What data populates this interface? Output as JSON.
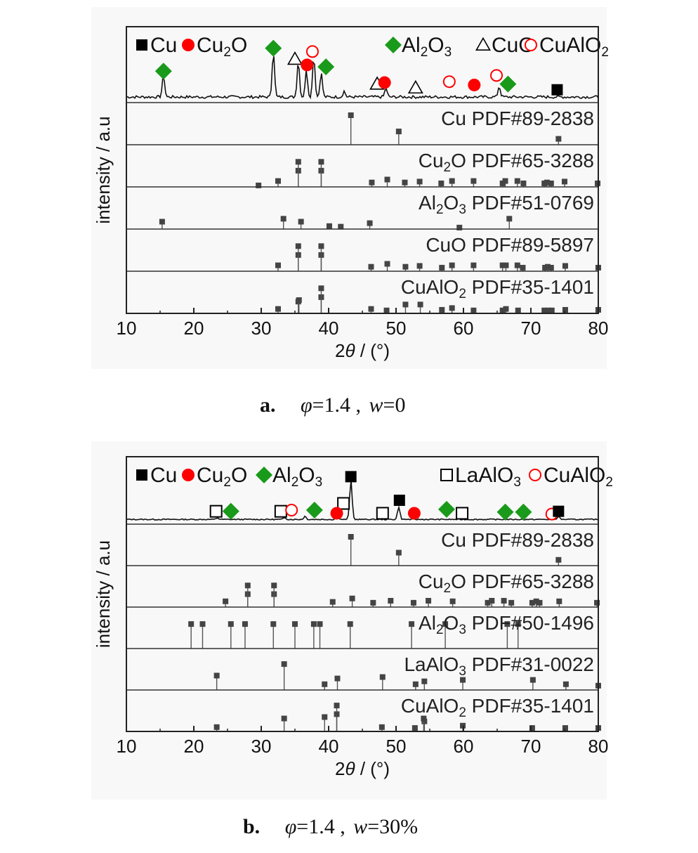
{
  "chart_data": [
    {
      "type": "line",
      "panel": "a",
      "caption": {
        "letter": "a.",
        "phi_symbol": "φ",
        "phi_value": "=1.4 ,",
        "w_symbol": "w",
        "w_value": "=0"
      },
      "xlabel_parts": [
        "2",
        "θ",
        " / (°)"
      ],
      "ylabel": "intensity / a.u",
      "xlim": [
        10,
        80
      ],
      "xticks": [
        "10",
        "20",
        "30",
        "40",
        "50",
        "60",
        "70",
        "80"
      ],
      "legend": [
        {
          "marker": "filled-square",
          "color": "#000000",
          "label": "Cu"
        },
        {
          "marker": "filled-circle",
          "color": "#ff0000",
          "label": "Cu",
          "sub": "2",
          "tail": "O"
        },
        {
          "marker": "filled-diamond",
          "color": "#1a9a1a",
          "label": "Al",
          "sub": "2",
          "tail": "O",
          "sub2": "3"
        },
        {
          "marker": "open-triangle",
          "color": "#000000",
          "label": "CuO"
        },
        {
          "marker": "open-circle",
          "color": "#ff0000",
          "label": "CuAlO",
          "sub": "2"
        }
      ],
      "pattern_peaks": [
        {
          "x": 15.5,
          "h": 0.45
        },
        {
          "x": 31.8,
          "h": 0.95
        },
        {
          "x": 35.5,
          "h": 0.75
        },
        {
          "x": 36.7,
          "h": 0.55
        },
        {
          "x": 37.8,
          "h": 0.85
        },
        {
          "x": 38.9,
          "h": 0.5
        },
        {
          "x": 42.3,
          "h": 0.12
        },
        {
          "x": 48.5,
          "h": 0.18
        },
        {
          "x": 65.3,
          "h": 0.22
        }
      ],
      "pattern_markers": [
        {
          "x": 15.5,
          "y": 0.57,
          "m": "filled-diamond"
        },
        {
          "x": 31.8,
          "y": 1.05,
          "m": "filled-diamond"
        },
        {
          "x": 35.0,
          "y": 0.82,
          "m": "open-triangle"
        },
        {
          "x": 37.6,
          "y": 0.98,
          "m": "open-circle"
        },
        {
          "x": 36.8,
          "y": 0.7,
          "m": "filled-circle"
        },
        {
          "x": 39.6,
          "y": 0.66,
          "m": "filled-diamond"
        },
        {
          "x": 47.2,
          "y": 0.3,
          "m": "open-triangle"
        },
        {
          "x": 48.3,
          "y": 0.33,
          "m": "filled-circle"
        },
        {
          "x": 52.9,
          "y": 0.22,
          "m": "open-triangle"
        },
        {
          "x": 57.9,
          "y": 0.35,
          "m": "open-circle"
        },
        {
          "x": 61.6,
          "y": 0.28,
          "m": "filled-circle"
        },
        {
          "x": 64.9,
          "y": 0.48,
          "m": "open-circle"
        },
        {
          "x": 66.6,
          "y": 0.3,
          "m": "filled-diamond"
        },
        {
          "x": 73.9,
          "y": 0.18,
          "m": "filled-square"
        }
      ],
      "references": [
        {
          "name": "Cu",
          "sub": "",
          "tail": " PDF#89-2838",
          "peaks": [
            [
              43.3,
              1.0
            ],
            [
              50.4,
              0.45
            ],
            [
              74.1,
              0.2
            ]
          ]
        },
        {
          "name": "Cu",
          "sub": "2",
          "tail": "O PDF#65-3288",
          "peaks": [
            [
              29.6,
              0.05
            ],
            [
              32.5,
              0.2
            ],
            [
              35.5,
              0.55
            ],
            [
              35.5,
              0.85
            ],
            [
              38.9,
              0.55
            ],
            [
              38.9,
              0.85
            ],
            [
              46.4,
              0.15
            ],
            [
              48.7,
              0.25
            ],
            [
              51.3,
              0.15
            ],
            [
              53.5,
              0.18
            ],
            [
              56.7,
              0.12
            ],
            [
              58.3,
              0.2
            ],
            [
              61.5,
              0.2
            ],
            [
              65.8,
              0.12
            ],
            [
              66.2,
              0.2
            ],
            [
              68.0,
              0.2
            ],
            [
              68.9,
              0.12
            ],
            [
              72.0,
              0.12
            ],
            [
              72.4,
              0.15
            ],
            [
              73.0,
              0.12
            ],
            [
              75.0,
              0.18
            ],
            [
              79.9,
              0.12
            ]
          ]
        },
        {
          "name": "Al",
          "sub": "2",
          "tail": "O",
          "sub2": "3",
          "tail2": " PDF#51-0769",
          "peaks": [
            [
              15.3,
              0.25
            ],
            [
              33.3,
              0.35
            ],
            [
              35.9,
              0.25
            ],
            [
              40.1,
              0.1
            ],
            [
              41.8,
              0.08
            ],
            [
              46.1,
              0.2
            ],
            [
              59.4,
              0.05
            ],
            [
              66.8,
              0.35
            ]
          ]
        },
        {
          "name": "CuO",
          "sub": "",
          "tail": " PDF#89-5897",
          "peaks": [
            [
              32.5,
              0.2
            ],
            [
              35.5,
              0.55
            ],
            [
              35.5,
              0.85
            ],
            [
              38.9,
              0.55
            ],
            [
              38.9,
              0.85
            ],
            [
              46.3,
              0.15
            ],
            [
              48.7,
              0.25
            ],
            [
              51.4,
              0.15
            ],
            [
              53.5,
              0.18
            ],
            [
              56.8,
              0.12
            ],
            [
              58.3,
              0.2
            ],
            [
              61.5,
              0.2
            ],
            [
              65.8,
              0.2
            ],
            [
              66.3,
              0.2
            ],
            [
              68.0,
              0.2
            ],
            [
              68.8,
              0.12
            ],
            [
              72.1,
              0.12
            ],
            [
              72.5,
              0.15
            ],
            [
              73.0,
              0.12
            ],
            [
              75.1,
              0.18
            ],
            [
              80.0,
              0.12
            ]
          ]
        },
        {
          "name": "CuAlO",
          "sub": "2",
          "tail": " PDF#35-1401",
          "peaks": [
            [
              32.5,
              0.15
            ],
            [
              35.5,
              0.4
            ],
            [
              35.6,
              0.45
            ],
            [
              38.9,
              0.55
            ],
            [
              38.9,
              0.85
            ],
            [
              46.3,
              0.15
            ],
            [
              48.6,
              0.1
            ],
            [
              51.4,
              0.3
            ],
            [
              53.6,
              0.3
            ],
            [
              56.8,
              0.12
            ],
            [
              58.3,
              0.18
            ],
            [
              61.5,
              0.1
            ],
            [
              65.8,
              0.1
            ],
            [
              66.3,
              0.15
            ],
            [
              68.1,
              0.1
            ],
            [
              72.0,
              0.1
            ],
            [
              72.6,
              0.1
            ],
            [
              73.1,
              0.1
            ],
            [
              75.1,
              0.12
            ],
            [
              80.0,
              0.12
            ]
          ]
        }
      ]
    },
    {
      "type": "line",
      "panel": "b",
      "caption": {
        "letter": "b.",
        "phi_symbol": "φ",
        "phi_value": "=1.4 ,",
        "w_symbol": "w",
        "w_value": "=30%"
      },
      "xlabel_parts": [
        "2",
        "θ",
        " / (°)"
      ],
      "ylabel": "intensity / a.u",
      "xlim": [
        10,
        80
      ],
      "xticks": [
        "10",
        "20",
        "30",
        "40",
        "50",
        "60",
        "70",
        "80"
      ],
      "legend": [
        {
          "marker": "filled-square",
          "color": "#000000",
          "label": "Cu"
        },
        {
          "marker": "filled-circle",
          "color": "#ff0000",
          "label": "Cu",
          "sub": "2",
          "tail": "O"
        },
        {
          "marker": "filled-diamond",
          "color": "#1a9a1a",
          "label": "Al",
          "sub": "2",
          "tail": "O",
          "sub2": "3"
        },
        {
          "marker": "open-square",
          "color": "#000000",
          "label": "LaAlO",
          "sub": "3"
        },
        {
          "marker": "open-circle",
          "color": "#ff0000",
          "label": "CuAlO",
          "sub": "2"
        }
      ],
      "pattern_peaks": [
        {
          "x": 23.5,
          "h": 0.04
        },
        {
          "x": 33.5,
          "h": 0.05
        },
        {
          "x": 36.5,
          "h": 0.08
        },
        {
          "x": 41.3,
          "h": 0.15
        },
        {
          "x": 43.3,
          "h": 1.0
        },
        {
          "x": 50.4,
          "h": 0.32
        },
        {
          "x": 74.1,
          "h": 0.08
        }
      ],
      "pattern_markers": [
        {
          "x": 23.3,
          "y": 0.22,
          "m": "open-square"
        },
        {
          "x": 25.5,
          "y": 0.22,
          "m": "filled-diamond"
        },
        {
          "x": 32.9,
          "y": 0.22,
          "m": "open-square"
        },
        {
          "x": 34.5,
          "y": 0.25,
          "m": "open-circle"
        },
        {
          "x": 37.9,
          "y": 0.25,
          "m": "filled-diamond"
        },
        {
          "x": 42.2,
          "y": 0.42,
          "m": "open-square"
        },
        {
          "x": 41.2,
          "y": 0.17,
          "m": "filled-circle"
        },
        {
          "x": 43.3,
          "y": 1.1,
          "m": "filled-square"
        },
        {
          "x": 48.0,
          "y": 0.17,
          "m": "open-square"
        },
        {
          "x": 50.5,
          "y": 0.5,
          "m": "filled-square"
        },
        {
          "x": 52.7,
          "y": 0.17,
          "m": "filled-circle"
        },
        {
          "x": 57.5,
          "y": 0.27,
          "m": "filled-diamond"
        },
        {
          "x": 59.8,
          "y": 0.17,
          "m": "open-square"
        },
        {
          "x": 66.2,
          "y": 0.2,
          "m": "filled-diamond"
        },
        {
          "x": 68.9,
          "y": 0.2,
          "m": "filled-diamond"
        },
        {
          "x": 73.1,
          "y": 0.15,
          "m": "open-circle"
        },
        {
          "x": 74.1,
          "y": 0.22,
          "m": "filled-square"
        }
      ],
      "references": [
        {
          "name": "Cu",
          "sub": "",
          "tail": " PDF#89-2838",
          "peaks": [
            [
              43.3,
              1.0
            ],
            [
              50.4,
              0.45
            ],
            [
              74.1,
              0.2
            ]
          ]
        },
        {
          "name": "Cu",
          "sub": "2",
          "tail": "O PDF#65-3288",
          "peaks": [
            [
              24.7,
              0.2
            ],
            [
              28.0,
              0.45
            ],
            [
              28.0,
              0.75
            ],
            [
              31.9,
              0.45
            ],
            [
              31.9,
              0.75
            ],
            [
              40.6,
              0.18
            ],
            [
              43.5,
              0.3
            ],
            [
              46.6,
              0.15
            ],
            [
              49.2,
              0.22
            ],
            [
              52.6,
              0.15
            ],
            [
              54.8,
              0.22
            ],
            [
              58.4,
              0.2
            ],
            [
              63.6,
              0.15
            ],
            [
              64.2,
              0.22
            ],
            [
              66.0,
              0.22
            ],
            [
              67.1,
              0.15
            ],
            [
              70.2,
              0.15
            ],
            [
              70.8,
              0.2
            ],
            [
              71.3,
              0.15
            ],
            [
              74.2,
              0.2
            ],
            [
              79.8,
              0.15
            ]
          ]
        },
        {
          "name": "Al",
          "sub": "2",
          "tail": "O",
          "sub2": "3",
          "tail2": " PDF#50-1496",
          "peaks": [
            [
              19.6,
              0.85
            ],
            [
              21.3,
              0.85
            ],
            [
              25.5,
              0.85
            ],
            [
              27.6,
              0.85
            ],
            [
              31.8,
              0.85
            ],
            [
              35.0,
              0.85
            ],
            [
              37.8,
              0.85
            ],
            [
              38.7,
              0.85
            ],
            [
              43.2,
              0.85
            ],
            [
              52.3,
              0.85
            ],
            [
              57.3,
              0.85
            ],
            [
              66.5,
              0.85
            ],
            [
              68.1,
              0.85
            ]
          ]
        },
        {
          "name": "LaAlO",
          "sub": "3",
          "tail": " PDF#31-0022",
          "peaks": [
            [
              23.4,
              0.5
            ],
            [
              33.4,
              0.9
            ],
            [
              39.4,
              0.2
            ],
            [
              41.3,
              0.4
            ],
            [
              48.0,
              0.45
            ],
            [
              52.9,
              0.2
            ],
            [
              54.2,
              0.3
            ],
            [
              59.9,
              0.35
            ],
            [
              70.3,
              0.35
            ],
            [
              75.2,
              0.2
            ],
            [
              80.0,
              0.15
            ]
          ]
        },
        {
          "name": "CuAlO",
          "sub": "2",
          "tail": " PDF#35-1401",
          "peaks": [
            [
              23.4,
              0.15
            ],
            [
              33.4,
              0.45
            ],
            [
              39.4,
              0.5
            ],
            [
              41.2,
              0.9
            ],
            [
              41.2,
              0.6
            ],
            [
              47.9,
              0.15
            ],
            [
              52.8,
              0.12
            ],
            [
              54.2,
              0.35
            ],
            [
              54.1,
              0.45
            ],
            [
              59.9,
              0.2
            ],
            [
              70.2,
              0.12
            ],
            [
              75.1,
              0.12
            ],
            [
              80.0,
              0.12
            ]
          ]
        }
      ]
    }
  ]
}
